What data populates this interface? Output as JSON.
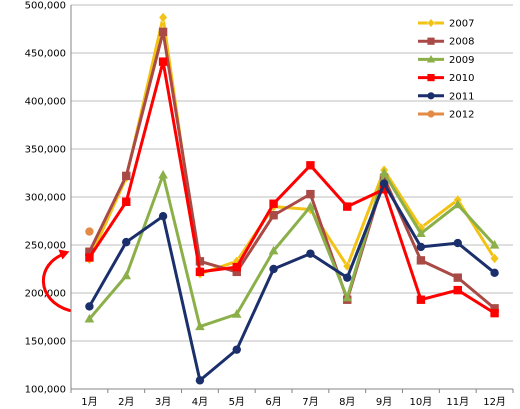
{
  "chart_data": {
    "type": "line",
    "categories": [
      "1月",
      "2月",
      "3月",
      "4月",
      "5月",
      "6月",
      "7月",
      "8月",
      "9月",
      "10月",
      "11月",
      "12月"
    ],
    "ylim": [
      100000,
      500000
    ],
    "yticks": [
      100000,
      150000,
      200000,
      250000,
      300000,
      350000,
      400000,
      450000,
      500000
    ],
    "ytick_labels": [
      "100,000",
      "150,000",
      "200,000",
      "250,000",
      "300,000",
      "350,000",
      "400,000",
      "450,000",
      "500,000"
    ],
    "grid": "horizontal",
    "legend_position": "top-right",
    "series": [
      {
        "name": "2007",
        "color": "#f2c314",
        "marker": "diamond",
        "values": [
          235000,
          320000,
          487000,
          220000,
          233000,
          290000,
          287000,
          228000,
          328000,
          268000,
          297000,
          236000
        ]
      },
      {
        "name": "2008",
        "color": "#a94a46",
        "marker": "square",
        "values": [
          243000,
          322000,
          472000,
          233000,
          222000,
          281000,
          303000,
          193000,
          320000,
          234000,
          216000,
          184000
        ]
      },
      {
        "name": "2009",
        "color": "#8bb04a",
        "marker": "triangle",
        "values": [
          173000,
          218000,
          323000,
          165000,
          178000,
          244000,
          290000,
          195000,
          325000,
          262000,
          292000,
          250000
        ]
      },
      {
        "name": "2010",
        "color": "#ff0000",
        "marker": "square",
        "values": [
          237000,
          295000,
          441000,
          222000,
          227000,
          293000,
          333000,
          290000,
          308000,
          193000,
          203000,
          179000
        ]
      },
      {
        "name": "2011",
        "color": "#1a2f6b",
        "marker": "circle",
        "values": [
          186000,
          253000,
          280000,
          109000,
          141000,
          225000,
          241000,
          216000,
          314000,
          248000,
          252000,
          221000
        ]
      },
      {
        "name": "2012",
        "color": "#e38a46",
        "marker": "circle",
        "values": [
          264000,
          null,
          null,
          null,
          null,
          null,
          null,
          null,
          null,
          null,
          null,
          null
        ]
      }
    ],
    "annotation": {
      "type": "curved-arrow",
      "color": "#ff0000",
      "from_value": 186000,
      "to_value": 237000,
      "category": "1月"
    }
  }
}
